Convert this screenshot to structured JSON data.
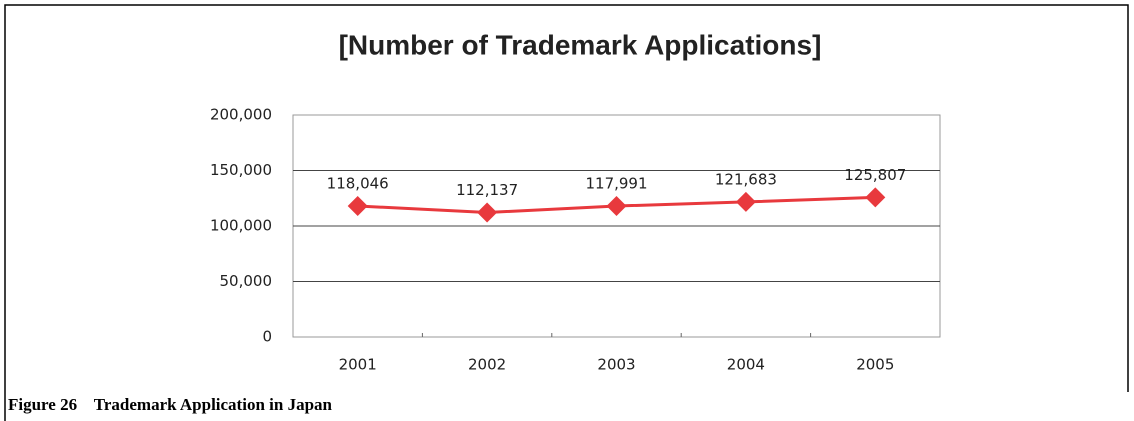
{
  "chart_data": {
    "type": "line",
    "title": "[Number of Trademark Applications]",
    "categories": [
      "2001",
      "2002",
      "2003",
      "2004",
      "2005"
    ],
    "values": [
      118046,
      112137,
      117991,
      121683,
      125807
    ],
    "value_labels": [
      "118,046",
      "112,137",
      "117,991",
      "121,683",
      "125,807"
    ],
    "color": "#e8393d",
    "ylim": [
      0,
      200000
    ],
    "yticks": [
      0,
      {
        "value": 50000,
        "label": "50,000"
      },
      {
        "value": 100000,
        "label": "100,000"
      },
      {
        "value": 150000,
        "label": "150,000"
      },
      {
        "value": 200000,
        "label": "200,000"
      }
    ],
    "grid": true
  },
  "caption": "Figure 26    Trademark Application in Japan"
}
